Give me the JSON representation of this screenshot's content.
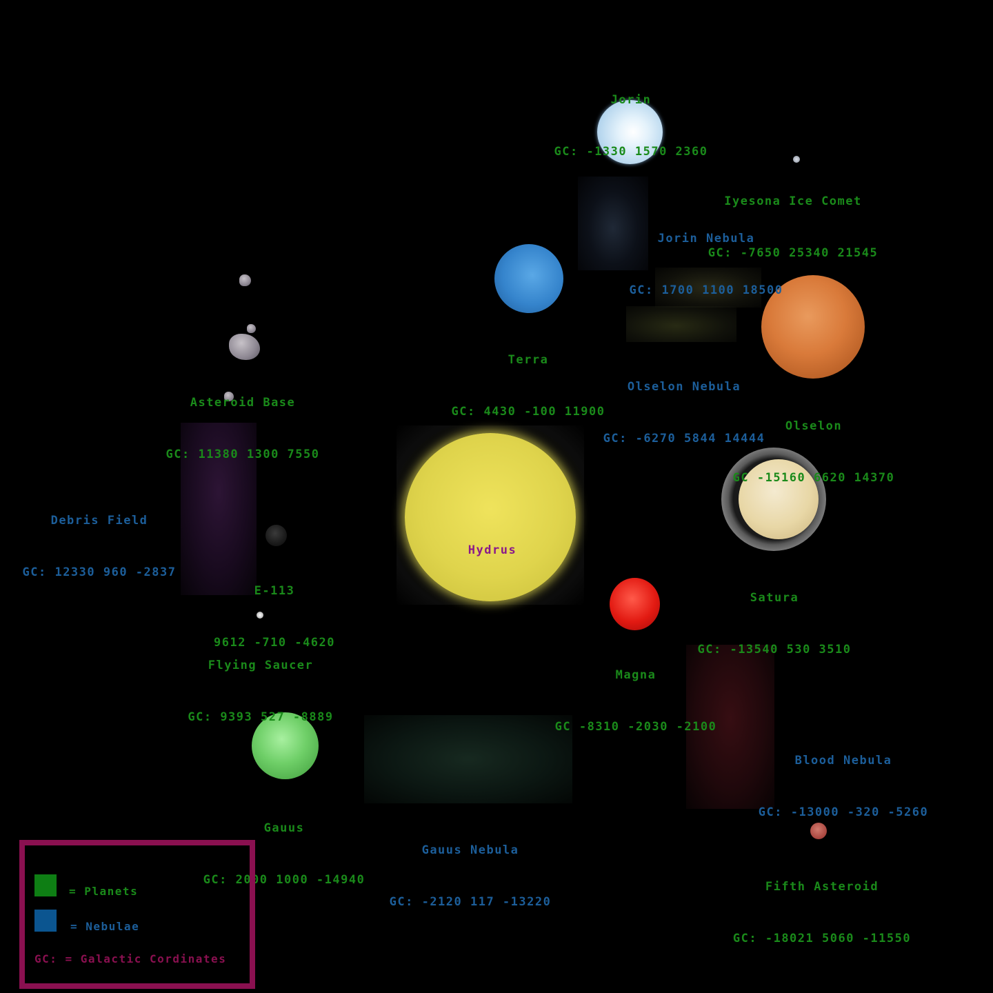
{
  "objects": {
    "jorin": {
      "name": "Jorin",
      "gc": "GC: -1330 1570 2360"
    },
    "iyesona_ice_comet": {
      "name": "Iyesona Ice Comet",
      "gc": "GC: -7650 25340 21545"
    },
    "jorin_nebula": {
      "name": "Jorin Nebula",
      "gc": "GC: 1700 1100 18500"
    },
    "terra": {
      "name": "Terra",
      "gc": "GC: 4430 -100 11900"
    },
    "olselon_nebula": {
      "name": "Olselon Nebula",
      "gc": "GC: -6270 5844 14444"
    },
    "asteroid_base": {
      "name": "Asteroid Base",
      "gc": "GC: 11380 1300 7550"
    },
    "olselon": {
      "name": "Olselon",
      "gc": "GC -15160 6620 14370"
    },
    "debris_field": {
      "name": "Debris Field",
      "gc": "GC: 12330 960 -2837"
    },
    "hydrus": {
      "name": "Hydrus"
    },
    "e113": {
      "name": "E-113",
      "gc": "9612 -710 -4620"
    },
    "satura": {
      "name": "Satura",
      "gc": "GC: -13540 530 3510"
    },
    "flying_saucer": {
      "name": "Flying Saucer",
      "gc": "GC: 9393 527 -8889"
    },
    "magna": {
      "name": "Magna",
      "gc": "GC -8310 -2030 -2100"
    },
    "blood_nebula": {
      "name": "Blood Nebula",
      "gc": "GC: -13000 -320 -5260"
    },
    "gauus": {
      "name": "Gauus",
      "gc": "GC: 2000 1000 -14940"
    },
    "gauus_nebula": {
      "name": "Gauus Nebula",
      "gc": "GC: -2120 117 -13220"
    },
    "fifth_asteroid": {
      "name": "Fifth Asteroid",
      "gc": "GC: -18021 5060 -11550"
    }
  },
  "legend": {
    "planets": "= Planets",
    "nebulae": "= Nebulae",
    "gc": "GC: = Galactic Cordinates",
    "colors": {
      "planets": "#0e7e14",
      "nebulae": "#0b5590",
      "border": "#8a1050"
    }
  },
  "colors": {
    "planet_label": "#1a8a1a",
    "nebula_label": "#1c5e9a",
    "star_label": "#8a1a8a"
  }
}
